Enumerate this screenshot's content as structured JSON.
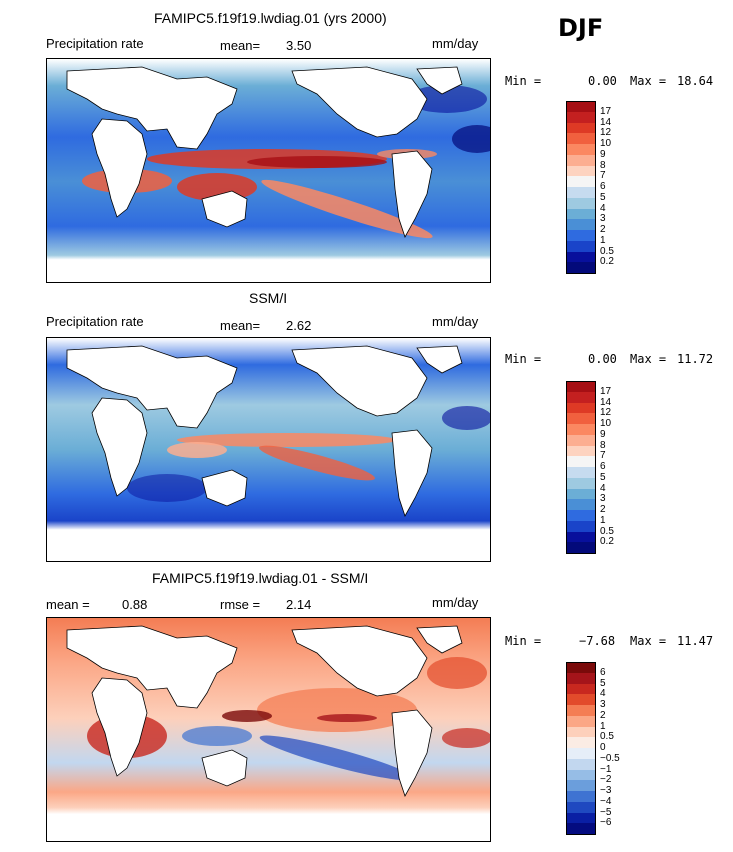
{
  "season": "DJF",
  "panels": [
    {
      "title": "FAMIPC5.f19f19.lwdiag.01 (yrs 2000)",
      "left_label": "Precipitation rate",
      "stat_label": "mean=",
      "stat_value": "3.50",
      "units": "mm/day",
      "minmax": {
        "min_label": "Min =",
        "min": "0.00",
        "max_label": "Max =",
        "max": "18.64"
      },
      "colorbar": {
        "labels": [
          "17",
          "14",
          "12",
          "10",
          "9",
          "8",
          "7",
          "6",
          "5",
          "4",
          "3",
          "2",
          "1",
          "0.5",
          "0.2"
        ],
        "colors": [
          "#a60f14",
          "#c42020",
          "#de3a25",
          "#f1603e",
          "#fb8861",
          "#fcae91",
          "#fdd3c0",
          "#f5f5f5",
          "#c6dbef",
          "#9ecae1",
          "#6baed6",
          "#4a8fd6",
          "#2f6be0",
          "#1a44c9",
          "#08109c",
          "#030a7a"
        ]
      }
    },
    {
      "title": "SSM/I",
      "left_label": "Precipitation rate",
      "stat_label": "mean=",
      "stat_value": "2.62",
      "units": "mm/day",
      "minmax": {
        "min_label": "Min =",
        "min": "0.00",
        "max_label": "Max =",
        "max": "11.72"
      },
      "colorbar": {
        "labels": [
          "17",
          "14",
          "12",
          "10",
          "9",
          "8",
          "7",
          "6",
          "5",
          "4",
          "3",
          "2",
          "1",
          "0.5",
          "0.2"
        ],
        "colors": [
          "#a60f14",
          "#c42020",
          "#de3a25",
          "#f1603e",
          "#fb8861",
          "#fcae91",
          "#fdd3c0",
          "#f5f5f5",
          "#c6dbef",
          "#9ecae1",
          "#6baed6",
          "#4a8fd6",
          "#2f6be0",
          "#1a44c9",
          "#08109c",
          "#030a7a"
        ]
      }
    },
    {
      "title": "FAMIPC5.f19f19.lwdiag.01 - SSM/I",
      "left_label": "mean =",
      "left_value": "0.88",
      "stat_label": "rmse =",
      "stat_value": "2.14",
      "units": "mm/day",
      "minmax": {
        "min_label": "Min =",
        "min": "−7.68",
        "max_label": "Max =",
        "max": "11.47"
      },
      "colorbar": {
        "labels": [
          "6",
          "5",
          "4",
          "3",
          "2",
          "1",
          "0.5",
          "0",
          "−0.5",
          "−1",
          "−2",
          "−3",
          "−4",
          "−5",
          "−6"
        ],
        "colors": [
          "#7a0a0a",
          "#a5141a",
          "#c8281f",
          "#e24b2b",
          "#f47d54",
          "#fba786",
          "#fdd0bb",
          "#fbece4",
          "#e6eef8",
          "#c2d7ef",
          "#96bde6",
          "#6b9edc",
          "#3f73d2",
          "#1f49c0",
          "#0a1fa4",
          "#040c80"
        ]
      }
    }
  ]
}
